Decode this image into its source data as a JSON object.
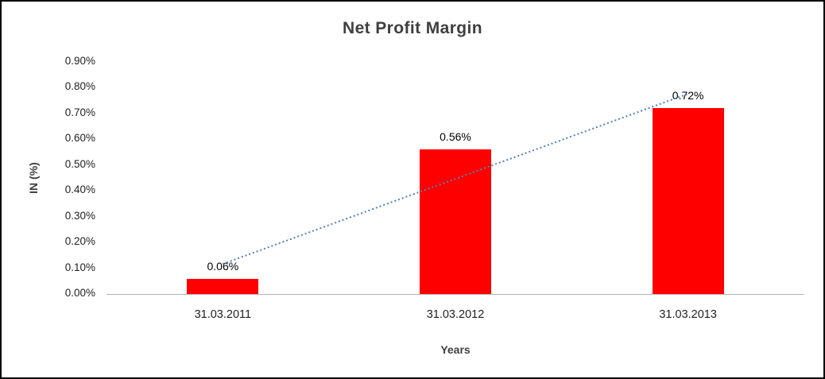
{
  "chart_data": {
    "type": "bar",
    "title": "Net Profit Margin",
    "categories": [
      "31.03.2011",
      "31.03.2012",
      "31.03.2013"
    ],
    "values": [
      0.06,
      0.56,
      0.72
    ],
    "data_labels": [
      "0.06%",
      "0.56%",
      "0.72%"
    ],
    "xlabel": "Years",
    "ylabel": "IN (%)",
    "ylim": [
      0,
      0.9
    ],
    "ytick_step": 0.1,
    "yticks": [
      "0.00%",
      "0.10%",
      "0.20%",
      "0.30%",
      "0.40%",
      "0.50%",
      "0.60%",
      "0.70%",
      "0.80%",
      "0.90%"
    ],
    "grid": false,
    "legend": false,
    "bar_color": "#ff0000",
    "trendline": {
      "type": "linear",
      "style": "dotted",
      "color": "#4f81bd"
    }
  }
}
